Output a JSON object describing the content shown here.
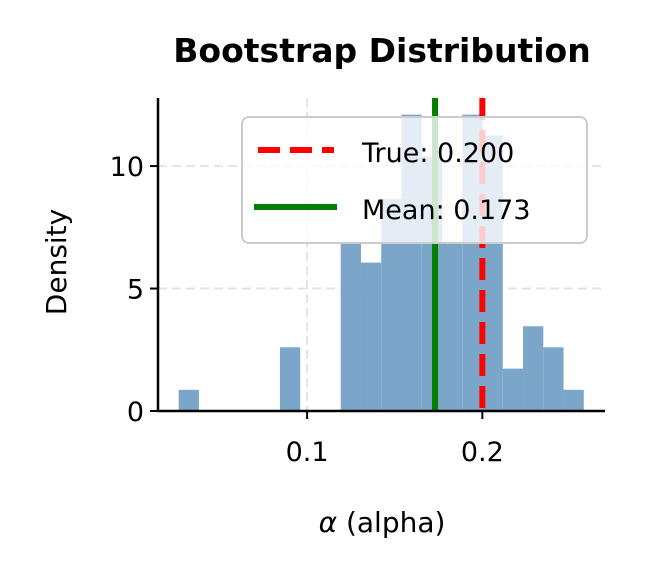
{
  "chart_data": {
    "type": "bar",
    "title": "Bootstrap Distribution",
    "xlabel_symbol": "α",
    "xlabel": "(alpha)",
    "ylabel": "Density",
    "xlim": [
      0.0149,
      0.27
    ],
    "ylim": [
      0,
      12.78
    ],
    "xticks": [
      0.1,
      0.2
    ],
    "xtick_labels": [
      "0.1",
      "0.2"
    ],
    "yticks": [
      0,
      5,
      10
    ],
    "ytick_labels": [
      "0",
      "5",
      "10"
    ],
    "grid": true,
    "bin_start": 0.0267,
    "bin_width": 0.01156,
    "densities": [
      0.865,
      0,
      0,
      0,
      0,
      2.6,
      0,
      0,
      6.92,
      6.06,
      8.65,
      12.1,
      10.4,
      6.92,
      12.1,
      11.25,
      1.73,
      3.46,
      2.6,
      0.865
    ],
    "bar_color": "#7ba6ca",
    "lines": [
      {
        "name": "True: 0.200",
        "value": 0.2,
        "color": "#ff0000",
        "style": "dashed"
      },
      {
        "name": "Mean: 0.173",
        "value": 0.173,
        "color": "#008000",
        "style": "solid"
      }
    ],
    "legend_placement": "top-right"
  }
}
